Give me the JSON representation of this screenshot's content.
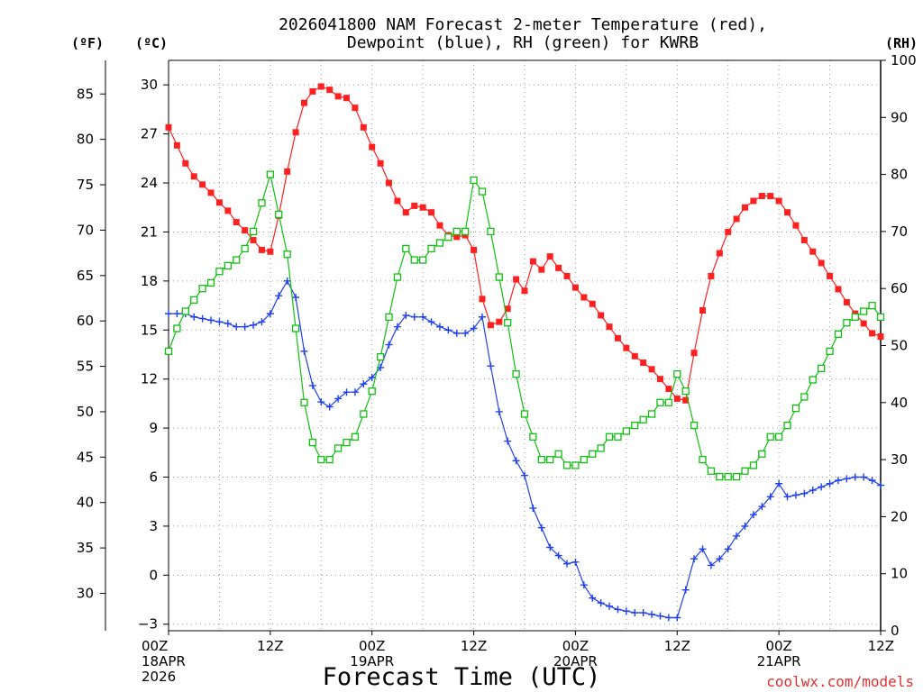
{
  "chart_data": {
    "type": "line",
    "title_line1": "2026041800 NAM Forecast 2-meter Temperature (red),",
    "title_line2": "Dewpoint (blue), RH (green) for KWRB",
    "xlabel": "Forecast Time (UTC)",
    "credit": "coolwx.com/models",
    "axis_units": {
      "fahrenheit": "(ºF)",
      "celsius": "(ºC)",
      "rh": "(RH)"
    },
    "ylim_celsius": [
      -3.4,
      31.5
    ],
    "ylim_rh": [
      0,
      100
    ],
    "x_ticks": [
      {
        "h": 0,
        "lines": [
          "00Z",
          "18APR",
          "2026"
        ]
      },
      {
        "h": 12,
        "lines": [
          "12Z"
        ]
      },
      {
        "h": 24,
        "lines": [
          "00Z",
          "19APR"
        ]
      },
      {
        "h": 36,
        "lines": [
          "12Z"
        ]
      },
      {
        "h": 48,
        "lines": [
          "00Z",
          "20APR"
        ]
      },
      {
        "h": 60,
        "lines": [
          "12Z"
        ]
      },
      {
        "h": 72,
        "lines": [
          "00Z",
          "21APR"
        ]
      },
      {
        "h": 84,
        "lines": [
          "12Z"
        ]
      }
    ],
    "celsius_ticks": [
      "−3",
      "0",
      "3",
      "6",
      "9",
      "12",
      "15",
      "18",
      "21",
      "24",
      "27",
      "30"
    ],
    "fahrenheit_ticks": [
      "30",
      "35",
      "40",
      "45",
      "50",
      "55",
      "60",
      "65",
      "70",
      "75",
      "80",
      "85"
    ],
    "rh_ticks": [
      "0",
      "10",
      "20",
      "30",
      "40",
      "50",
      "60",
      "70",
      "80",
      "90",
      "100"
    ],
    "series": [
      {
        "name": "Temperature",
        "unit": "C",
        "color": "#ff2020",
        "marker": "square",
        "x": [
          0,
          1,
          2,
          3,
          4,
          5,
          6,
          7,
          8,
          9,
          10,
          11,
          12,
          13,
          14,
          15,
          16,
          17,
          18,
          19,
          20,
          21,
          22,
          23,
          24,
          25,
          26,
          27,
          28,
          29,
          30,
          31,
          32,
          33,
          34,
          35,
          36,
          37,
          38,
          39,
          40,
          41,
          42,
          43,
          44,
          45,
          46,
          47,
          48,
          49,
          50,
          51,
          52,
          53,
          54,
          55,
          56,
          57,
          58,
          59,
          60,
          61,
          62,
          63,
          64,
          65,
          66,
          67,
          68,
          69,
          70,
          71,
          72,
          73,
          74,
          75,
          76,
          77,
          78,
          79,
          80,
          81,
          82,
          83,
          84
        ],
        "values": [
          27.4,
          26.3,
          25.2,
          24.4,
          23.9,
          23.4,
          22.8,
          22.3,
          21.6,
          21.1,
          20.5,
          19.9,
          19.8,
          22.0,
          24.7,
          27.1,
          28.9,
          29.6,
          29.9,
          29.7,
          29.3,
          29.2,
          28.6,
          27.4,
          26.2,
          25.2,
          24.0,
          22.9,
          22.2,
          22.6,
          22.5,
          22.2,
          21.4,
          20.8,
          20.7,
          20.8,
          19.9,
          16.9,
          15.3,
          15.5,
          16.3,
          18.1,
          17.4,
          19.2,
          18.7,
          19.5,
          18.8,
          18.3,
          17.6,
          17.0,
          16.6,
          15.9,
          15.2,
          14.5,
          13.9,
          13.4,
          13.0,
          12.6,
          12.0,
          11.4,
          10.8,
          10.7,
          13.6,
          16.2,
          18.3,
          19.7,
          21.0,
          21.8,
          22.5,
          22.9,
          23.2,
          23.2,
          22.9,
          22.2,
          21.4,
          20.5,
          19.8,
          19.1,
          18.3,
          17.5,
          16.7,
          16.0,
          15.4,
          14.8,
          14.6
        ]
      },
      {
        "name": "Dewpoint",
        "unit": "C",
        "color": "#2040f0",
        "marker": "plus",
        "x": [
          0,
          1,
          2,
          3,
          4,
          5,
          6,
          7,
          8,
          9,
          10,
          11,
          12,
          13,
          14,
          15,
          16,
          17,
          18,
          19,
          20,
          21,
          22,
          23,
          24,
          25,
          26,
          27,
          28,
          29,
          30,
          31,
          32,
          33,
          34,
          35,
          36,
          37,
          38,
          39,
          40,
          41,
          42,
          43,
          44,
          45,
          46,
          47,
          48,
          49,
          50,
          51,
          52,
          53,
          54,
          55,
          56,
          57,
          58,
          59,
          60,
          61,
          62,
          63,
          64,
          65,
          66,
          67,
          68,
          69,
          70,
          71,
          72,
          73,
          74,
          75,
          76,
          77,
          78,
          79,
          80,
          81,
          82,
          83,
          84
        ],
        "values": [
          16.0,
          16.0,
          16.0,
          15.8,
          15.7,
          15.6,
          15.5,
          15.4,
          15.2,
          15.2,
          15.3,
          15.5,
          16.0,
          17.1,
          18.0,
          17.0,
          13.7,
          11.6,
          10.6,
          10.3,
          10.8,
          11.2,
          11.2,
          11.7,
          12.1,
          12.7,
          14.1,
          15.2,
          15.9,
          15.8,
          15.8,
          15.5,
          15.2,
          15.0,
          14.8,
          14.8,
          15.1,
          15.8,
          12.8,
          10.0,
          8.2,
          7.0,
          6.1,
          4.1,
          2.9,
          1.7,
          1.2,
          0.7,
          0.8,
          -0.6,
          -1.4,
          -1.7,
          -1.9,
          -2.1,
          -2.2,
          -2.3,
          -2.3,
          -2.4,
          -2.5,
          -2.6,
          -2.6,
          -0.9,
          1.0,
          1.6,
          0.6,
          1.0,
          1.6,
          2.4,
          3.0,
          3.7,
          4.2,
          4.8,
          5.6,
          4.8,
          4.9,
          5.0,
          5.2,
          5.4,
          5.6,
          5.8,
          5.9,
          6.0,
          6.0,
          5.8,
          5.5
        ]
      },
      {
        "name": "RH",
        "unit": "%",
        "color": "#10c010",
        "marker": "open-square",
        "x": [
          0,
          1,
          2,
          3,
          4,
          5,
          6,
          7,
          8,
          9,
          10,
          11,
          12,
          13,
          14,
          15,
          16,
          17,
          18,
          19,
          20,
          21,
          22,
          23,
          24,
          25,
          26,
          27,
          28,
          29,
          30,
          31,
          32,
          33,
          34,
          35,
          36,
          37,
          38,
          39,
          40,
          41,
          42,
          43,
          44,
          45,
          46,
          47,
          48,
          49,
          50,
          51,
          52,
          53,
          54,
          55,
          56,
          57,
          58,
          59,
          60,
          61,
          62,
          63,
          64,
          65,
          66,
          67,
          68,
          69,
          70,
          71,
          72,
          73,
          74,
          75,
          76,
          77,
          78,
          79,
          80,
          81,
          82,
          83,
          84
        ],
        "values": [
          49,
          53,
          56,
          58,
          60,
          61,
          63,
          64,
          65,
          67,
          70,
          75,
          80,
          73,
          66,
          53,
          40,
          33,
          30,
          30,
          32,
          33,
          34,
          38,
          42,
          48,
          55,
          62,
          67,
          65,
          65,
          67,
          68,
          69,
          70,
          70,
          79,
          77,
          70,
          62,
          54,
          45,
          38,
          34,
          30,
          30,
          31,
          29,
          29,
          30,
          31,
          32,
          34,
          34,
          35,
          36,
          37,
          38,
          40,
          40,
          45,
          42,
          36,
          30,
          28,
          27,
          27,
          27,
          28,
          29,
          31,
          34,
          34,
          36,
          39,
          41,
          44,
          46,
          49,
          52,
          54,
          55,
          56,
          57,
          55
        ]
      }
    ]
  }
}
